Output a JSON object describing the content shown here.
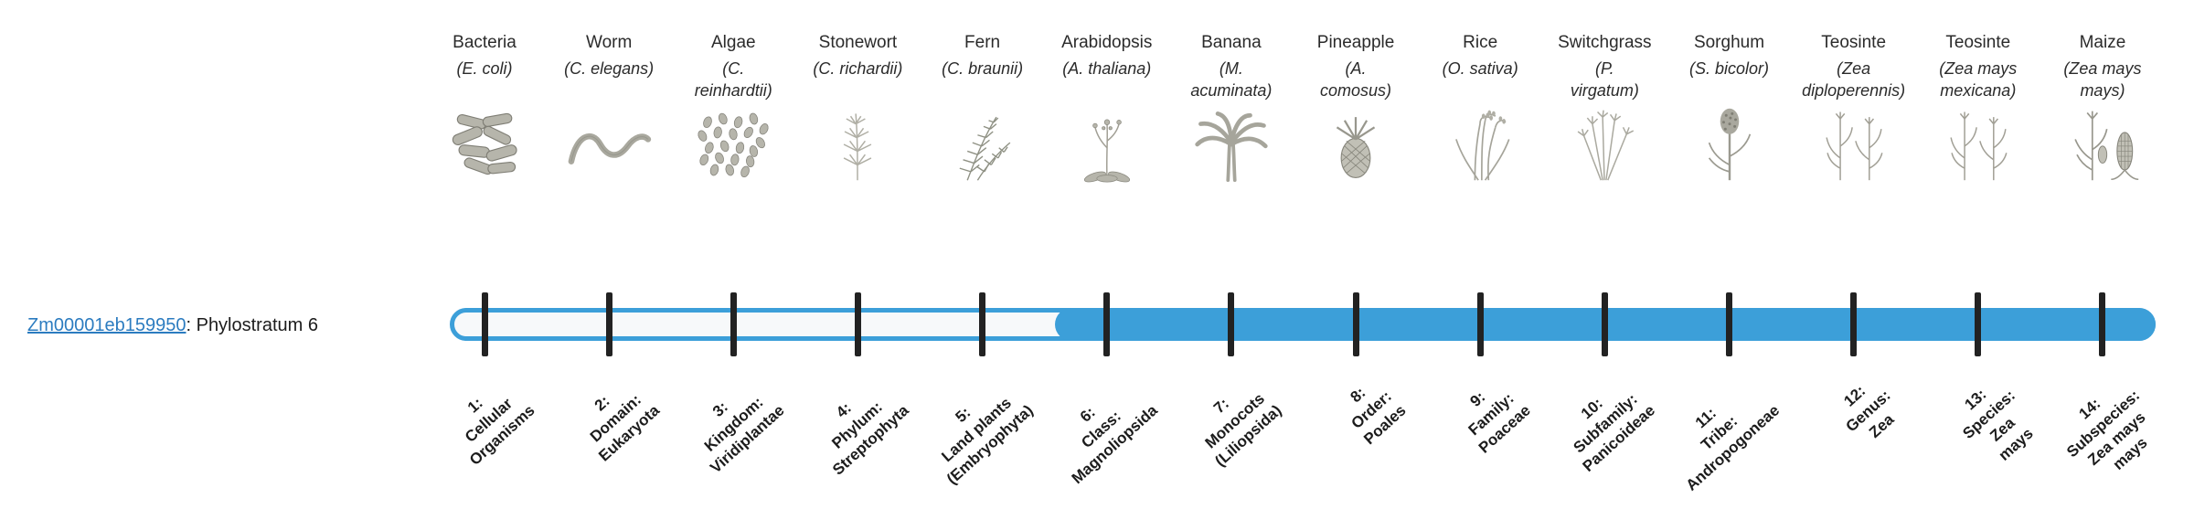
{
  "colors": {
    "accent": "#3c9fd9",
    "tick": "#222222",
    "link": "#2c7cc0"
  },
  "gene": {
    "id": "Zm00001eb159950",
    "suffix": ": Phylostratum 6",
    "phylostratum": 6
  },
  "bar": {
    "filled_from_stratum": 6,
    "strata_count": 14
  },
  "columns": [
    {
      "common": "Bacteria",
      "latin": "(E. coli)",
      "icon": "bacteria-icon",
      "stratum": [
        "1:",
        "Cellular",
        "Organisms"
      ]
    },
    {
      "common": "Worm",
      "latin": "(C. elegans)",
      "icon": "worm-icon",
      "stratum": [
        "2:",
        "Domain:",
        "Eukaryota"
      ]
    },
    {
      "common": "Algae",
      "latin": "(C.\nreinhardtii)",
      "icon": "algae-icon",
      "stratum": [
        "3:",
        "Kingdom:",
        "Viridiplantae"
      ]
    },
    {
      "common": "Stonewort",
      "latin": "(C. richardii)",
      "icon": "stonewort-icon",
      "stratum": [
        "4:",
        "Phylum:",
        "Streptophyta"
      ]
    },
    {
      "common": "Fern",
      "latin": "(C. braunii)",
      "icon": "fern-icon",
      "stratum": [
        "5:",
        "Land plants",
        "(Embryophyta)"
      ]
    },
    {
      "common": "Arabidopsis",
      "latin": "(A. thaliana)",
      "icon": "arabidopsis-icon",
      "stratum": [
        "6:",
        "Class:",
        "Magnoliopsida"
      ]
    },
    {
      "common": "Banana",
      "latin": "(M.\nacuminata)",
      "icon": "banana-icon",
      "stratum": [
        "7:",
        "Monocots",
        "(Liliopsida)"
      ]
    },
    {
      "common": "Pineapple",
      "latin": "(A.\ncomosus)",
      "icon": "pineapple-icon",
      "stratum": [
        "8:",
        "Order:",
        "Poales"
      ]
    },
    {
      "common": "Rice",
      "latin": "(O. sativa)",
      "icon": "rice-icon",
      "stratum": [
        "9:",
        "Family:",
        "Poaceae"
      ]
    },
    {
      "common": "Switchgrass",
      "latin": "(P.\nvirgatum)",
      "icon": "switchgrass-icon",
      "stratum": [
        "10:",
        "Subfamily:",
        "Panicoideae"
      ]
    },
    {
      "common": "Sorghum",
      "latin": "(S. bicolor)",
      "icon": "sorghum-icon",
      "stratum": [
        "11:",
        "Tribe:",
        "Andropogoneae"
      ]
    },
    {
      "common": "Teosinte",
      "latin": "(Zea\ndiploperennis)",
      "icon": "teosinte-icon",
      "stratum": [
        "12:",
        "Genus:",
        "Zea"
      ]
    },
    {
      "common": "Teosinte",
      "latin": "(Zea mays\nmexicana)",
      "icon": "teosinte-icon",
      "stratum": [
        "13:",
        "Species:",
        "Zea",
        "mays"
      ]
    },
    {
      "common": "Maize",
      "latin": "(Zea mays\nmays)",
      "icon": "maize-icon",
      "stratum": [
        "14:",
        "Subspecies:",
        "Zea mays",
        "mays"
      ]
    }
  ]
}
